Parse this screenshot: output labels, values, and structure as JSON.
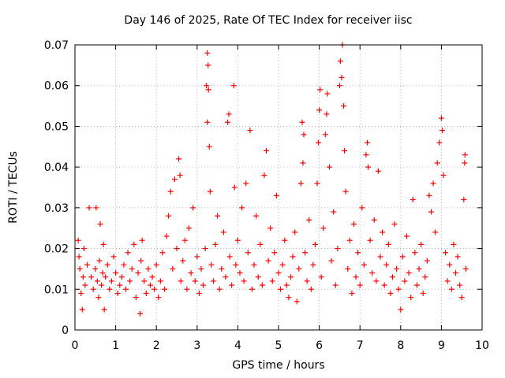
{
  "chart_data": {
    "type": "scatter",
    "title": "Day 146 of 2025, Rate Of TEC Index for receiver iisc",
    "xlabel": "GPS time / hours",
    "ylabel": "ROTI / TECUs",
    "xlim": [
      0,
      10
    ],
    "ylim": [
      0,
      0.07
    ],
    "xticks": [
      "0",
      "1",
      "2",
      "3",
      "4",
      "5",
      "6",
      "7",
      "8",
      "9",
      "10"
    ],
    "yticks": [
      "0",
      "0.01",
      "0.02",
      "0.03",
      "0.04",
      "0.05",
      "0.06",
      "0.07"
    ],
    "grid": true,
    "marker": "+",
    "series": [
      {
        "name": "ROTI",
        "color": "#ff0000",
        "points": [
          [
            0.08,
            0.022
          ],
          [
            0.1,
            0.018
          ],
          [
            0.12,
            0.015
          ],
          [
            0.15,
            0.009
          ],
          [
            0.18,
            0.005
          ],
          [
            0.2,
            0.013
          ],
          [
            0.22,
            0.02
          ],
          [
            0.25,
            0.011
          ],
          [
            0.3,
            0.016
          ],
          [
            0.35,
            0.03
          ],
          [
            0.4,
            0.013
          ],
          [
            0.45,
            0.01
          ],
          [
            0.5,
            0.015
          ],
          [
            0.52,
            0.03
          ],
          [
            0.55,
            0.012
          ],
          [
            0.58,
            0.008
          ],
          [
            0.6,
            0.017
          ],
          [
            0.62,
            0.026
          ],
          [
            0.65,
            0.011
          ],
          [
            0.68,
            0.014
          ],
          [
            0.7,
            0.021
          ],
          [
            0.72,
            0.005
          ],
          [
            0.75,
            0.013
          ],
          [
            0.8,
            0.016
          ],
          [
            0.85,
            0.01
          ],
          [
            0.9,
            0.012
          ],
          [
            0.95,
            0.018
          ],
          [
            1.0,
            0.014
          ],
          [
            1.05,
            0.009
          ],
          [
            1.1,
            0.011
          ],
          [
            1.15,
            0.013
          ],
          [
            1.2,
            0.016
          ],
          [
            1.25,
            0.01
          ],
          [
            1.3,
            0.019
          ],
          [
            1.35,
            0.012
          ],
          [
            1.4,
            0.015
          ],
          [
            1.45,
            0.021
          ],
          [
            1.5,
            0.008
          ],
          [
            1.55,
            0.014
          ],
          [
            1.6,
            0.004
          ],
          [
            1.62,
            0.017
          ],
          [
            1.65,
            0.022
          ],
          [
            1.7,
            0.012
          ],
          [
            1.75,
            0.009
          ],
          [
            1.8,
            0.015
          ],
          [
            1.85,
            0.011
          ],
          [
            1.9,
            0.013
          ],
          [
            1.95,
            0.01
          ],
          [
            2.0,
            0.016
          ],
          [
            2.05,
            0.008
          ],
          [
            2.1,
            0.012
          ],
          [
            2.15,
            0.019
          ],
          [
            2.2,
            0.01
          ],
          [
            2.25,
            0.023
          ],
          [
            2.3,
            0.028
          ],
          [
            2.35,
            0.034
          ],
          [
            2.4,
            0.015
          ],
          [
            2.45,
            0.037
          ],
          [
            2.5,
            0.02
          ],
          [
            2.55,
            0.042
          ],
          [
            2.58,
            0.038
          ],
          [
            2.6,
            0.012
          ],
          [
            2.65,
            0.017
          ],
          [
            2.7,
            0.022
          ],
          [
            2.75,
            0.01
          ],
          [
            2.8,
            0.025
          ],
          [
            2.85,
            0.014
          ],
          [
            2.9,
            0.03
          ],
          [
            2.95,
            0.012
          ],
          [
            3.0,
            0.018
          ],
          [
            3.05,
            0.009
          ],
          [
            3.1,
            0.015
          ],
          [
            3.15,
            0.011
          ],
          [
            3.2,
            0.02
          ],
          [
            3.23,
            0.06
          ],
          [
            3.25,
            0.068
          ],
          [
            3.27,
            0.065
          ],
          [
            3.28,
            0.059
          ],
          [
            3.25,
            0.051
          ],
          [
            3.3,
            0.045
          ],
          [
            3.32,
            0.034
          ],
          [
            3.35,
            0.016
          ],
          [
            3.4,
            0.012
          ],
          [
            3.45,
            0.021
          ],
          [
            3.5,
            0.028
          ],
          [
            3.55,
            0.01
          ],
          [
            3.6,
            0.015
          ],
          [
            3.65,
            0.024
          ],
          [
            3.7,
            0.013
          ],
          [
            3.75,
            0.051
          ],
          [
            3.78,
            0.053
          ],
          [
            3.8,
            0.018
          ],
          [
            3.85,
            0.011
          ],
          [
            3.9,
            0.06
          ],
          [
            3.92,
            0.035
          ],
          [
            3.95,
            0.016
          ],
          [
            4.0,
            0.022
          ],
          [
            4.05,
            0.014
          ],
          [
            4.1,
            0.03
          ],
          [
            4.15,
            0.012
          ],
          [
            4.2,
            0.036
          ],
          [
            4.25,
            0.019
          ],
          [
            4.3,
            0.049
          ],
          [
            4.35,
            0.01
          ],
          [
            4.4,
            0.016
          ],
          [
            4.45,
            0.028
          ],
          [
            4.5,
            0.013
          ],
          [
            4.55,
            0.021
          ],
          [
            4.6,
            0.011
          ],
          [
            4.65,
            0.038
          ],
          [
            4.7,
            0.044
          ],
          [
            4.75,
            0.017
          ],
          [
            4.8,
            0.025
          ],
          [
            4.85,
            0.012
          ],
          [
            4.9,
            0.019
          ],
          [
            4.95,
            0.033
          ],
          [
            5.0,
            0.014
          ],
          [
            5.05,
            0.01
          ],
          [
            5.1,
            0.016
          ],
          [
            5.15,
            0.022
          ],
          [
            5.2,
            0.011
          ],
          [
            5.25,
            0.008
          ],
          [
            5.3,
            0.013
          ],
          [
            5.35,
            0.018
          ],
          [
            5.4,
            0.024
          ],
          [
            5.45,
            0.007
          ],
          [
            5.5,
            0.015
          ],
          [
            5.55,
            0.036
          ],
          [
            5.58,
            0.051
          ],
          [
            5.6,
            0.041
          ],
          [
            5.62,
            0.048
          ],
          [
            5.65,
            0.019
          ],
          [
            5.7,
            0.012
          ],
          [
            5.75,
            0.027
          ],
          [
            5.8,
            0.01
          ],
          [
            5.85,
            0.016
          ],
          [
            5.9,
            0.021
          ],
          [
            5.95,
            0.036
          ],
          [
            5.98,
            0.046
          ],
          [
            6.0,
            0.054
          ],
          [
            6.02,
            0.059
          ],
          [
            6.05,
            0.013
          ],
          [
            6.1,
            0.025
          ],
          [
            6.15,
            0.048
          ],
          [
            6.18,
            0.053
          ],
          [
            6.2,
            0.058
          ],
          [
            6.25,
            0.04
          ],
          [
            6.3,
            0.017
          ],
          [
            6.35,
            0.029
          ],
          [
            6.4,
            0.011
          ],
          [
            6.45,
            0.02
          ],
          [
            6.5,
            0.06
          ],
          [
            6.52,
            0.066
          ],
          [
            6.55,
            0.062
          ],
          [
            6.57,
            0.07
          ],
          [
            6.6,
            0.055
          ],
          [
            6.62,
            0.044
          ],
          [
            6.65,
            0.034
          ],
          [
            6.7,
            0.015
          ],
          [
            6.75,
            0.022
          ],
          [
            6.8,
            0.009
          ],
          [
            6.85,
            0.026
          ],
          [
            6.9,
            0.013
          ],
          [
            6.95,
            0.019
          ],
          [
            7.0,
            0.011
          ],
          [
            7.05,
            0.03
          ],
          [
            7.1,
            0.016
          ],
          [
            7.15,
            0.043
          ],
          [
            7.18,
            0.046
          ],
          [
            7.2,
            0.04
          ],
          [
            7.25,
            0.022
          ],
          [
            7.3,
            0.014
          ],
          [
            7.35,
            0.027
          ],
          [
            7.4,
            0.012
          ],
          [
            7.45,
            0.039
          ],
          [
            7.5,
            0.018
          ],
          [
            7.55,
            0.024
          ],
          [
            7.6,
            0.011
          ],
          [
            7.65,
            0.016
          ],
          [
            7.7,
            0.021
          ],
          [
            7.75,
            0.009
          ],
          [
            7.8,
            0.013
          ],
          [
            7.85,
            0.026
          ],
          [
            7.9,
            0.015
          ],
          [
            7.95,
            0.01
          ],
          [
            8.0,
            0.005
          ],
          [
            8.05,
            0.018
          ],
          [
            8.1,
            0.012
          ],
          [
            8.15,
            0.023
          ],
          [
            8.2,
            0.014
          ],
          [
            8.25,
            0.008
          ],
          [
            8.3,
            0.032
          ],
          [
            8.35,
            0.019
          ],
          [
            8.4,
            0.011
          ],
          [
            8.45,
            0.015
          ],
          [
            8.5,
            0.021
          ],
          [
            8.55,
            0.009
          ],
          [
            8.6,
            0.013
          ],
          [
            8.65,
            0.017
          ],
          [
            8.7,
            0.033
          ],
          [
            8.75,
            0.029
          ],
          [
            8.8,
            0.036
          ],
          [
            8.85,
            0.024
          ],
          [
            8.9,
            0.041
          ],
          [
            8.95,
            0.046
          ],
          [
            9.0,
            0.052
          ],
          [
            9.02,
            0.049
          ],
          [
            9.05,
            0.038
          ],
          [
            9.1,
            0.019
          ],
          [
            9.15,
            0.012
          ],
          [
            9.2,
            0.016
          ],
          [
            9.25,
            0.01
          ],
          [
            9.3,
            0.021
          ],
          [
            9.35,
            0.014
          ],
          [
            9.4,
            0.018
          ],
          [
            9.45,
            0.011
          ],
          [
            9.5,
            0.008
          ],
          [
            9.55,
            0.032
          ],
          [
            9.57,
            0.041
          ],
          [
            9.58,
            0.043
          ],
          [
            9.6,
            0.015
          ]
        ]
      }
    ]
  }
}
